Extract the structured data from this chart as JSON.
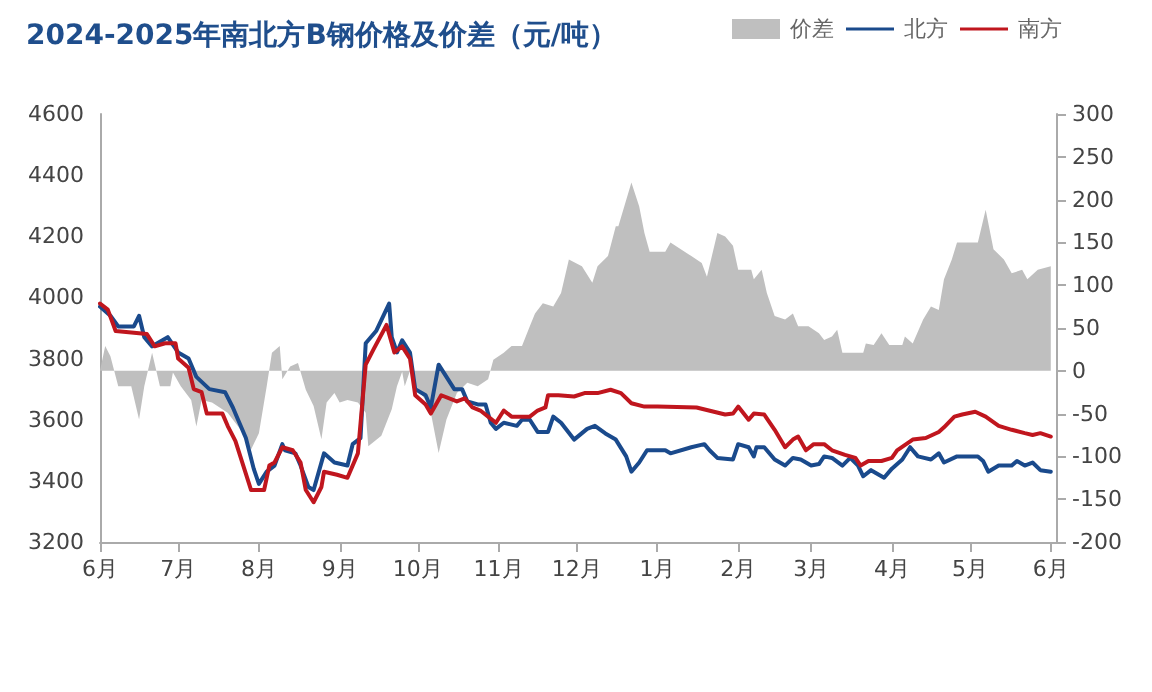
{
  "chart_data": {
    "type": "line",
    "title": "2024-2025年南北方B钢价格及价差（元/吨）",
    "legend": "top right",
    "grid": false,
    "marker": "none",
    "line_style": "solid",
    "xlim": [
      "2024-06-01",
      "2025-06-03"
    ],
    "xticks": [
      {
        "value": "2024-06-01",
        "label": "6月"
      },
      {
        "value": "2024-07-01",
        "label": "7月"
      },
      {
        "value": "2024-08-01",
        "label": "8月"
      },
      {
        "value": "2024-09-01",
        "label": "9月"
      },
      {
        "value": "2024-10-01",
        "label": "10月"
      },
      {
        "value": "2024-11-01",
        "label": "11月"
      },
      {
        "value": "2024-12-01",
        "label": "12月"
      },
      {
        "value": "2025-01-01",
        "label": "1月"
      },
      {
        "value": "2025-02-01",
        "label": "2月"
      },
      {
        "value": "2025-03-01",
        "label": "3月"
      },
      {
        "value": "2025-04-01",
        "label": "4月"
      },
      {
        "value": "2025-05-01",
        "label": "5月"
      },
      {
        "value": "2025-06-01",
        "label": "6月"
      }
    ],
    "ylim": [
      3200,
      4600
    ],
    "yticks": [
      3200,
      3400,
      3600,
      3800,
      4000,
      4200,
      4400,
      4600
    ],
    "y2lim": [
      -200,
      300
    ],
    "y2ticks": [
      -200,
      -150,
      -100,
      -50,
      0,
      50,
      100,
      150,
      200,
      250,
      300
    ],
    "series": [
      {
        "name": "价差",
        "type": "area",
        "axis": "y2",
        "color": "#bfbfbf",
        "x": [
          "2024-06-01",
          "2024-06-03",
          "2024-06-05",
          "2024-06-08",
          "2024-06-13",
          "2024-06-16",
          "2024-06-18",
          "2024-06-21",
          "2024-06-24",
          "2024-06-28",
          "2024-06-29",
          "2024-07-02",
          "2024-07-06",
          "2024-07-08",
          "2024-07-10",
          "2024-07-14",
          "2024-07-20",
          "2024-07-25",
          "2024-07-29",
          "2024-08-01",
          "2024-08-04",
          "2024-08-06",
          "2024-08-09",
          "2024-08-10",
          "2024-08-13",
          "2024-08-16",
          "2024-08-19",
          "2024-08-22",
          "2024-08-25",
          "2024-08-27",
          "2024-08-30",
          "2024-09-01",
          "2024-09-04",
          "2024-09-08",
          "2024-09-11",
          "2024-09-12",
          "2024-09-17",
          "2024-09-21",
          "2024-09-23",
          "2024-09-25",
          "2024-09-26",
          "2024-09-28",
          "2024-09-30",
          "2024-10-04",
          "2024-10-06",
          "2024-10-09",
          "2024-10-12",
          "2024-10-16",
          "2024-10-20",
          "2024-10-24",
          "2024-10-28",
          "2024-10-30",
          "2024-11-03",
          "2024-11-06",
          "2024-11-10",
          "2024-11-13",
          "2024-11-15",
          "2024-11-18",
          "2024-11-22",
          "2024-11-25",
          "2024-11-28",
          "2024-12-03",
          "2024-12-07",
          "2024-12-09",
          "2024-12-13",
          "2024-12-16",
          "2024-12-17",
          "2024-12-22",
          "2024-12-25",
          "2024-12-27",
          "2024-12-29",
          "2025-01-04",
          "2025-01-06",
          "2025-01-14",
          "2025-01-18",
          "2025-01-20",
          "2025-01-24",
          "2025-01-27",
          "2025-01-30",
          "2025-02-01",
          "2025-02-06",
          "2025-02-07",
          "2025-02-10",
          "2025-02-12",
          "2025-02-15",
          "2025-02-19",
          "2025-02-22",
          "2025-02-24",
          "2025-02-28",
          "2025-03-04",
          "2025-03-06",
          "2025-03-09",
          "2025-03-11",
          "2025-03-13",
          "2025-03-21",
          "2025-03-22",
          "2025-03-25",
          "2025-03-28",
          "2025-03-31",
          "2025-04-05",
          "2025-04-06",
          "2025-04-09",
          "2025-04-13",
          "2025-04-16",
          "2025-04-19",
          "2025-04-21",
          "2025-04-24",
          "2025-04-26",
          "2025-05-04",
          "2025-05-07",
          "2025-05-10",
          "2025-05-14",
          "2025-05-17",
          "2025-05-21",
          "2025-05-23",
          "2025-05-27",
          "2025-06-01"
        ],
        "values": [
          0,
          29,
          17,
          -18,
          -18,
          -57,
          -18,
          21,
          -18,
          -18,
          -2,
          -18,
          -34,
          -65,
          -34,
          -37,
          -49,
          -69,
          -92,
          -73,
          -18,
          21,
          29,
          -10,
          5,
          9,
          -22,
          -41,
          -80,
          -37,
          -26,
          -37,
          -34,
          -37,
          -49,
          -88,
          -76,
          -45,
          -18,
          -1,
          -18,
          0,
          -18,
          -34,
          -49,
          -96,
          -57,
          -26,
          -14,
          -18,
          -10,
          13,
          21,
          29,
          29,
          52,
          67,
          79,
          75,
          91,
          130,
          122,
          103,
          122,
          134,
          169,
          169,
          220,
          192,
          161,
          139,
          139,
          150,
          134,
          126,
          110,
          161,
          157,
          146,
          118,
          118,
          107,
          118,
          91,
          64,
          60,
          67,
          52,
          52,
          44,
          36,
          40,
          48,
          21,
          21,
          32,
          30,
          44,
          30,
          30,
          40,
          32,
          60,
          75,
          71,
          107,
          130,
          150,
          150,
          188,
          142,
          130,
          114,
          118,
          107,
          118,
          122
        ]
      },
      {
        "name": "北方",
        "color": "#1a4a8c",
        "x": [
          "2024-06-01",
          "2024-06-05",
          "2024-06-08",
          "2024-06-14",
          "2024-06-16",
          "2024-06-18",
          "2024-06-21",
          "2024-06-27",
          "2024-07-01",
          "2024-07-05",
          "2024-07-08",
          "2024-07-13",
          "2024-07-19",
          "2024-07-22",
          "2024-07-24",
          "2024-07-27",
          "2024-07-30",
          "2024-08-01",
          "2024-08-04",
          "2024-08-07",
          "2024-08-10",
          "2024-08-11",
          "2024-08-15",
          "2024-08-17",
          "2024-08-20",
          "2024-08-22",
          "2024-08-26",
          "2024-08-30",
          "2024-09-04",
          "2024-09-06",
          "2024-09-09",
          "2024-09-11",
          "2024-09-15",
          "2024-09-20",
          "2024-09-21",
          "2024-09-23",
          "2024-09-25",
          "2024-09-28",
          "2024-09-30",
          "2024-10-04",
          "2024-10-06",
          "2024-10-09",
          "2024-10-12",
          "2024-10-15",
          "2024-10-18",
          "2024-10-20",
          "2024-10-24",
          "2024-10-27",
          "2024-10-29",
          "2024-10-31",
          "2024-11-03",
          "2024-11-08",
          "2024-11-10",
          "2024-11-13",
          "2024-11-16",
          "2024-11-20",
          "2024-11-22",
          "2024-11-25",
          "2024-11-30",
          "2024-12-05",
          "2024-12-08",
          "2024-12-12",
          "2024-12-16",
          "2024-12-20",
          "2024-12-22",
          "2024-12-25",
          "2024-12-28",
          "2025-01-04",
          "2025-01-06",
          "2025-01-14",
          "2025-01-19",
          "2025-01-21",
          "2025-01-24",
          "2025-01-30",
          "2025-02-01",
          "2025-02-05",
          "2025-02-07",
          "2025-02-08",
          "2025-02-11",
          "2025-02-15",
          "2025-02-19",
          "2025-02-22",
          "2025-02-25",
          "2025-03-01",
          "2025-03-04",
          "2025-03-06",
          "2025-03-09",
          "2025-03-13",
          "2025-03-16",
          "2025-03-19",
          "2025-03-21",
          "2025-03-24",
          "2025-03-26",
          "2025-03-29",
          "2025-04-01",
          "2025-04-05",
          "2025-04-08",
          "2025-04-11",
          "2025-04-16",
          "2025-04-19",
          "2025-04-21",
          "2025-04-26",
          "2025-05-04",
          "2025-05-06",
          "2025-05-08",
          "2025-05-12",
          "2025-05-17",
          "2025-05-19",
          "2025-05-22",
          "2025-05-25",
          "2025-05-28",
          "2025-06-01"
        ],
        "values": [
          3970,
          3940,
          3905,
          3905,
          3940,
          3870,
          3840,
          3870,
          3820,
          3800,
          3740,
          3700,
          3690,
          3640,
          3600,
          3540,
          3440,
          3390,
          3430,
          3450,
          3520,
          3500,
          3490,
          3450,
          3380,
          3370,
          3490,
          3460,
          3450,
          3520,
          3540,
          3850,
          3890,
          3980,
          3870,
          3820,
          3860,
          3820,
          3700,
          3680,
          3640,
          3780,
          3740,
          3700,
          3700,
          3660,
          3650,
          3650,
          3590,
          3570,
          3590,
          3580,
          3600,
          3600,
          3560,
          3560,
          3610,
          3590,
          3535,
          3570,
          3580,
          3555,
          3535,
          3480,
          3430,
          3460,
          3500,
          3500,
          3490,
          3510,
          3520,
          3500,
          3475,
          3470,
          3520,
          3510,
          3480,
          3510,
          3510,
          3470,
          3450,
          3475,
          3470,
          3450,
          3455,
          3480,
          3475,
          3450,
          3475,
          3450,
          3415,
          3435,
          3425,
          3410,
          3440,
          3470,
          3510,
          3480,
          3470,
          3490,
          3460,
          3480,
          3480,
          3465,
          3430,
          3450,
          3450,
          3465,
          3450,
          3460,
          3435,
          3430
        ]
      },
      {
        "name": "南方",
        "color": "#c0161e",
        "x": [
          "2024-06-01",
          "2024-06-04",
          "2024-06-07",
          "2024-06-19",
          "2024-06-22",
          "2024-06-26",
          "2024-06-30",
          "2024-07-01",
          "2024-07-05",
          "2024-07-07",
          "2024-07-10",
          "2024-07-12",
          "2024-07-18",
          "2024-07-20",
          "2024-07-23",
          "2024-07-26",
          "2024-07-29",
          "2024-08-03",
          "2024-08-05",
          "2024-08-07",
          "2024-08-10",
          "2024-08-14",
          "2024-08-17",
          "2024-08-19",
          "2024-08-22",
          "2024-08-25",
          "2024-08-26",
          "2024-08-31",
          "2024-09-04",
          "2024-09-08",
          "2024-09-11",
          "2024-09-14",
          "2024-09-19",
          "2024-09-22",
          "2024-09-25",
          "2024-09-28",
          "2024-09-30",
          "2024-10-04",
          "2024-10-06",
          "2024-10-10",
          "2024-10-16",
          "2024-10-19",
          "2024-10-22",
          "2024-10-25",
          "2024-10-28",
          "2024-10-31",
          "2024-11-03",
          "2024-11-06",
          "2024-11-13",
          "2024-11-16",
          "2024-11-19",
          "2024-11-20",
          "2024-11-24",
          "2024-11-30",
          "2024-12-04",
          "2024-12-09",
          "2024-12-14",
          "2024-12-18",
          "2024-12-22",
          "2024-12-27",
          "2025-01-01",
          "2025-01-16",
          "2025-01-27",
          "2025-01-30",
          "2025-02-01",
          "2025-02-05",
          "2025-02-07",
          "2025-02-11",
          "2025-02-15",
          "2025-02-19",
          "2025-02-22",
          "2025-02-24",
          "2025-02-27",
          "2025-03-02",
          "2025-03-06",
          "2025-03-09",
          "2025-03-14",
          "2025-03-18",
          "2025-03-20",
          "2025-03-23",
          "2025-03-28",
          "2025-04-01",
          "2025-04-03",
          "2025-04-09",
          "2025-04-14",
          "2025-04-19",
          "2025-04-21",
          "2025-04-25",
          "2025-04-28",
          "2025-05-03",
          "2025-05-07",
          "2025-05-12",
          "2025-05-17",
          "2025-05-22",
          "2025-05-25",
          "2025-05-28",
          "2025-06-01"
        ],
        "values": [
          3980,
          3960,
          3890,
          3880,
          3840,
          3850,
          3850,
          3800,
          3770,
          3700,
          3690,
          3620,
          3620,
          3580,
          3530,
          3450,
          3370,
          3370,
          3450,
          3460,
          3510,
          3500,
          3460,
          3370,
          3330,
          3380,
          3430,
          3420,
          3410,
          3490,
          3780,
          3830,
          3910,
          3820,
          3840,
          3800,
          3680,
          3650,
          3620,
          3680,
          3660,
          3670,
          3640,
          3630,
          3610,
          3590,
          3630,
          3610,
          3610,
          3630,
          3640,
          3680,
          3680,
          3676,
          3687,
          3687,
          3698,
          3687,
          3654,
          3643,
          3643,
          3640,
          3617,
          3620,
          3643,
          3600,
          3620,
          3617,
          3567,
          3510,
          3535,
          3545,
          3500,
          3520,
          3520,
          3500,
          3485,
          3475,
          3450,
          3465,
          3465,
          3475,
          3500,
          3535,
          3540,
          3560,
          3575,
          3610,
          3617,
          3626,
          3610,
          3580,
          3567,
          3556,
          3550,
          3556,
          3545
        ]
      }
    ]
  }
}
